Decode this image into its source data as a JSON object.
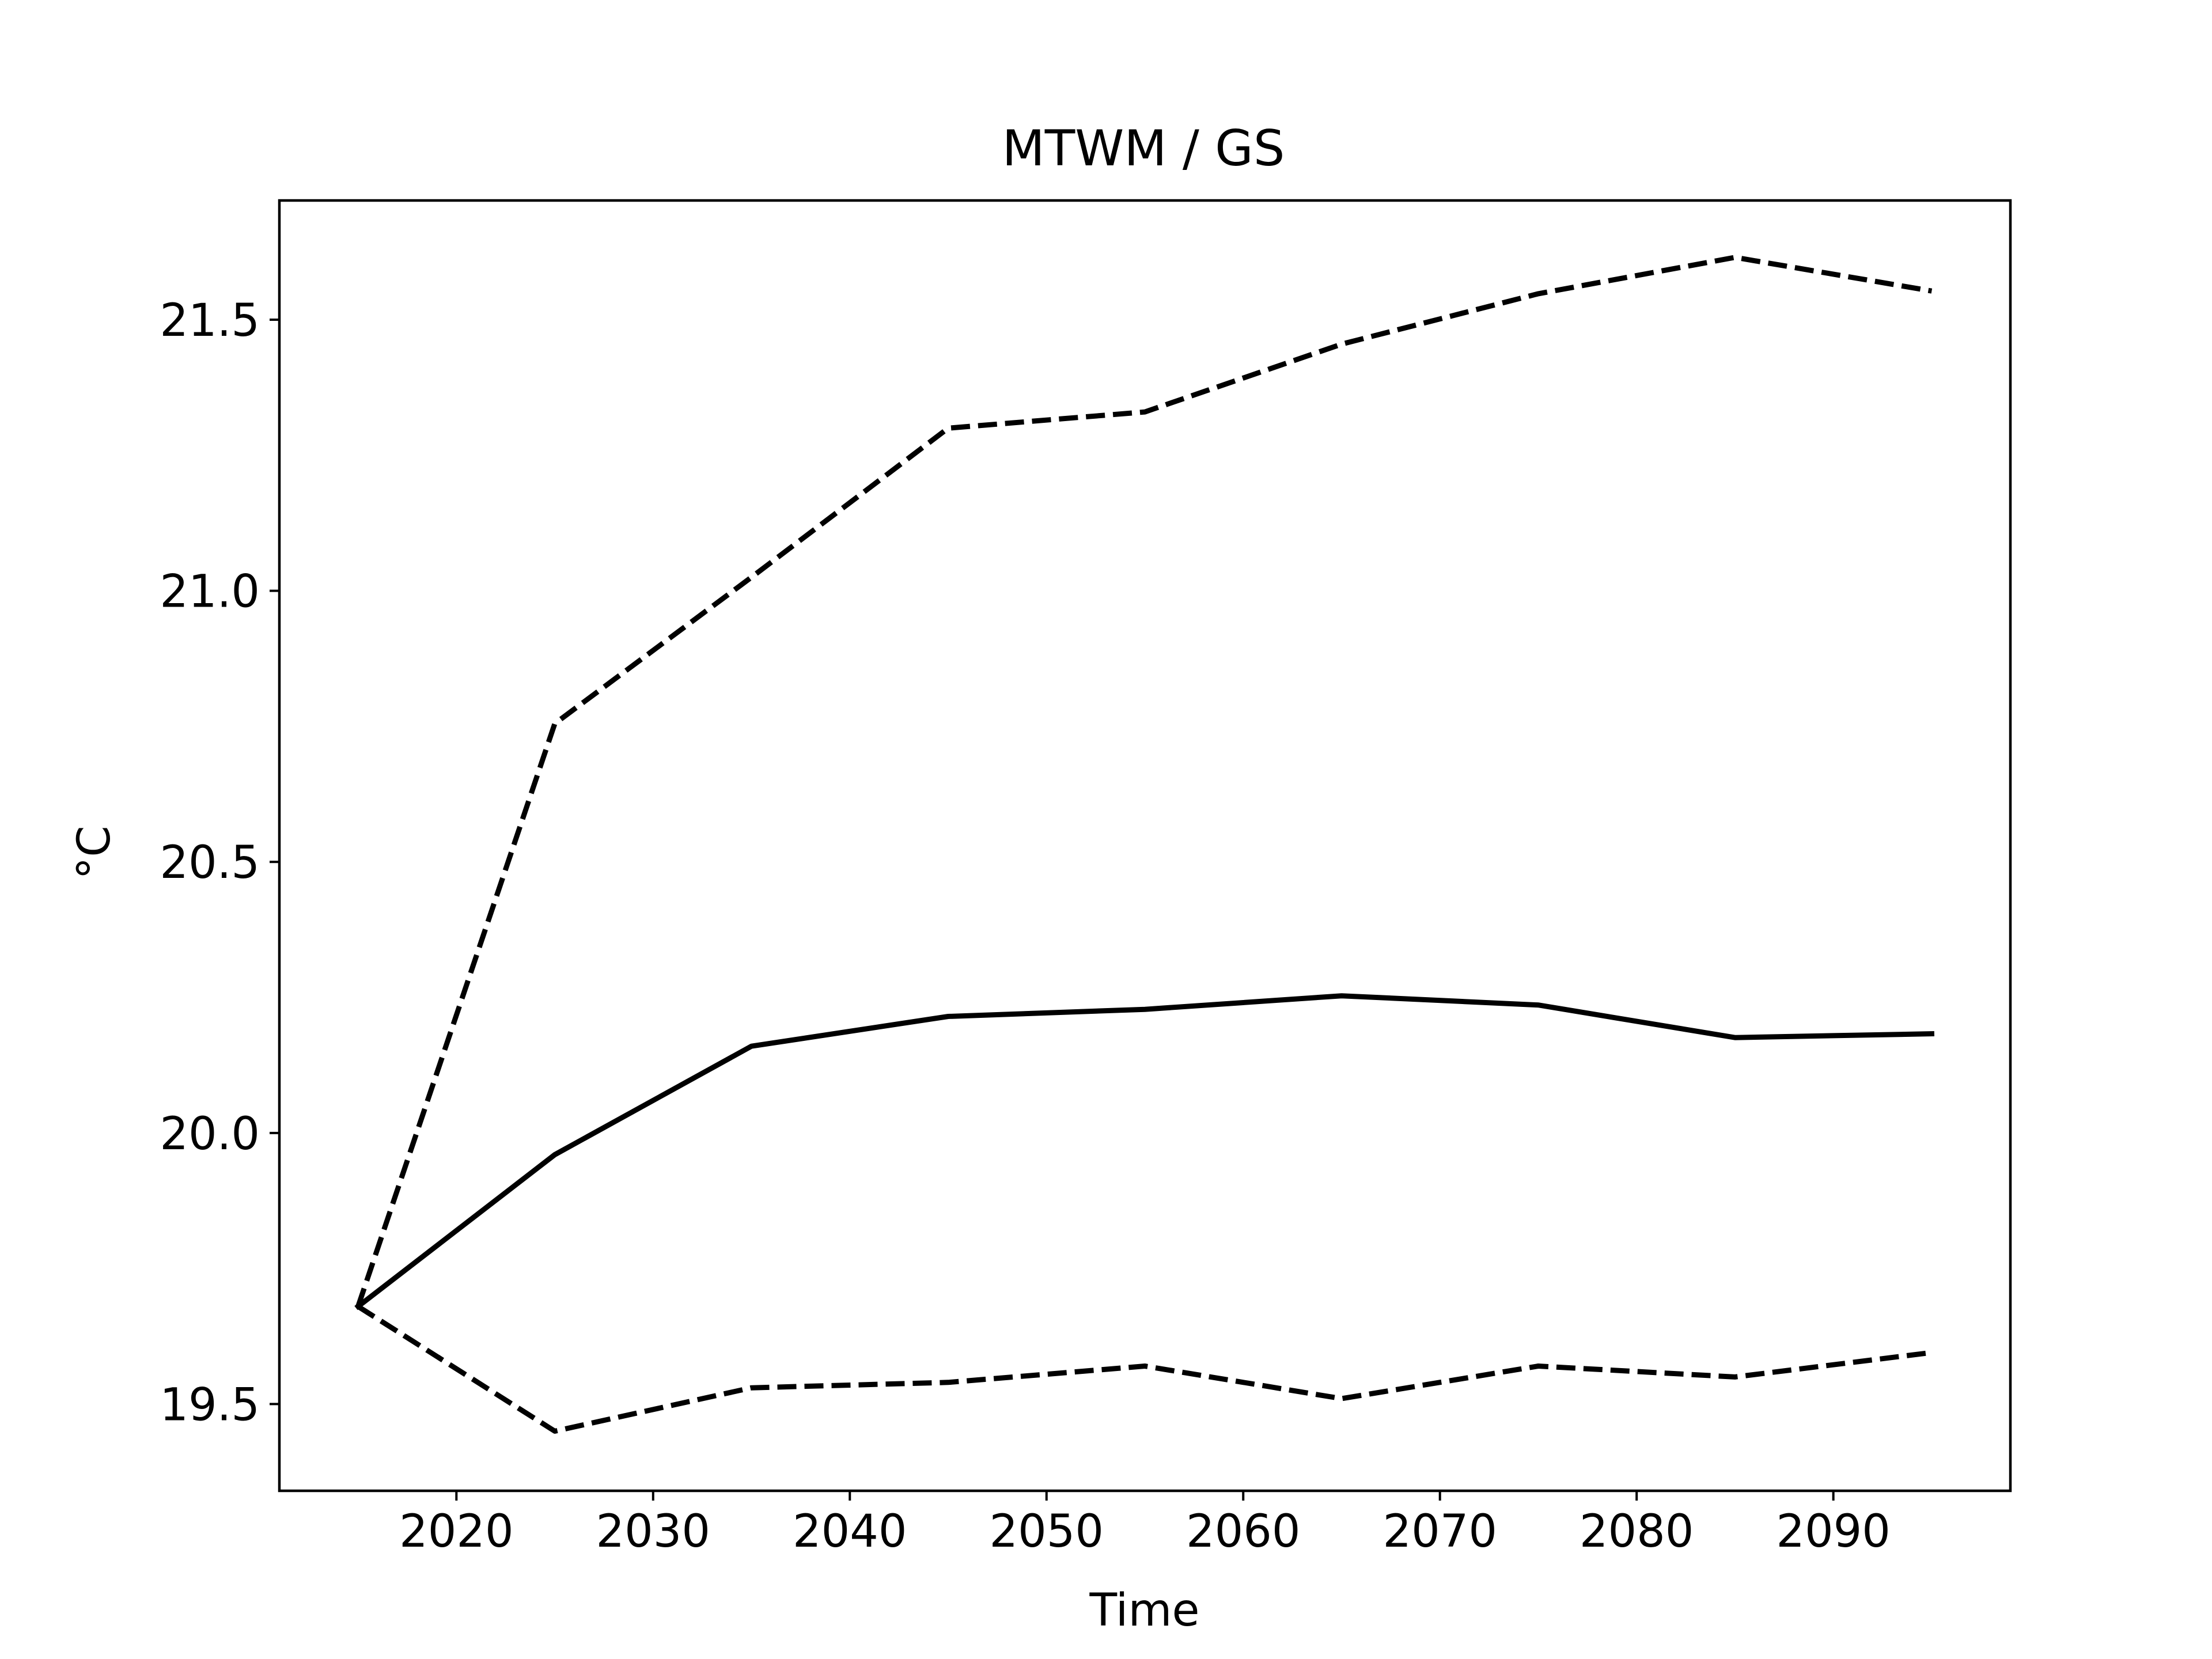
{
  "chart_data": {
    "type": "line",
    "title": "MTWM / GS",
    "xlabel": "Time",
    "ylabel": "°C",
    "xlim": [
      2011.0,
      2099.0
    ],
    "ylim": [
      19.34,
      21.72
    ],
    "xticks": [
      2020,
      2030,
      2040,
      2050,
      2060,
      2070,
      2080,
      2090
    ],
    "xtick_labels": [
      "2020",
      "2030",
      "2040",
      "2050",
      "2060",
      "2070",
      "2080",
      "2090"
    ],
    "yticks": [
      19.5,
      20.0,
      20.5,
      21.0,
      21.5
    ],
    "ytick_labels": [
      "19.5",
      "20.0",
      "20.5",
      "21.0",
      "21.5"
    ],
    "grid": false,
    "legend": "none",
    "x": [
      2015,
      2025,
      2035,
      2045,
      2055,
      2065,
      2075,
      2085,
      2095
    ],
    "series": [
      {
        "style": "solid",
        "color": "#000000",
        "values": [
          19.68,
          19.96,
          20.16,
          20.215,
          20.228,
          20.253,
          20.236,
          20.176,
          20.183
        ]
      },
      {
        "style": "dashed",
        "color": "#000000",
        "values": [
          19.68,
          20.755,
          21.025,
          21.3,
          21.33,
          21.455,
          21.548,
          21.615,
          21.553
        ]
      },
      {
        "style": "dashed",
        "color": "#000000",
        "values": [
          19.68,
          19.45,
          19.53,
          19.54,
          19.57,
          19.51,
          19.57,
          19.55,
          19.595
        ]
      }
    ]
  }
}
